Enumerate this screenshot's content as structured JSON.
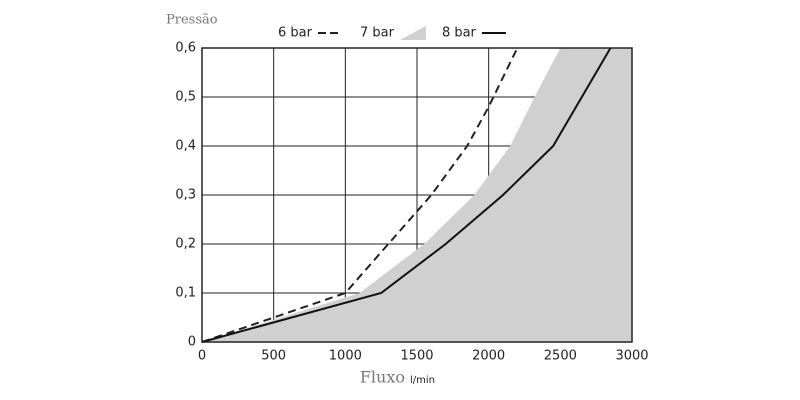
{
  "chart_data": {
    "type": "line",
    "y_label": "Pressão",
    "x_label": "Fluxo",
    "x_unit": "l/min",
    "xlim": [
      0,
      3000
    ],
    "xticks": [
      0,
      500,
      1000,
      1500,
      2000,
      2500,
      3000
    ],
    "ylim": [
      0,
      0.6
    ],
    "yticks": [
      0,
      {
        "value": 0.1,
        "label": "0,1"
      },
      {
        "value": 0.2,
        "label": "0,2"
      },
      {
        "value": 0.3,
        "label": "0,3"
      },
      {
        "value": 0.4,
        "label": "0,4"
      },
      {
        "value": 0.5,
        "label": "0,5"
      },
      {
        "value": 0.6,
        "label": "0,6"
      }
    ],
    "grid": true,
    "legend": "top",
    "series": [
      {
        "name": "6 bar",
        "color": "#222222",
        "style": "dashed",
        "x": [
          0,
          1000,
          1300,
          1600,
          1850,
          2000,
          2200
        ],
        "values": [
          0,
          0.1,
          0.2,
          0.3,
          0.4,
          0.48,
          0.6
        ]
      },
      {
        "name": "7 bar",
        "color": "#d0d0d0",
        "style": "area",
        "x": [
          0,
          1100,
          1550,
          1900,
          2150,
          2320,
          2500
        ],
        "values": [
          0,
          0.1,
          0.2,
          0.3,
          0.4,
          0.5,
          0.6
        ]
      },
      {
        "name": "8 bar",
        "color": "#111111",
        "style": "solid",
        "x": [
          0,
          1250,
          1700,
          2100,
          2450,
          2850
        ],
        "values": [
          0,
          0.1,
          0.2,
          0.3,
          0.4,
          0.6
        ]
      }
    ]
  }
}
